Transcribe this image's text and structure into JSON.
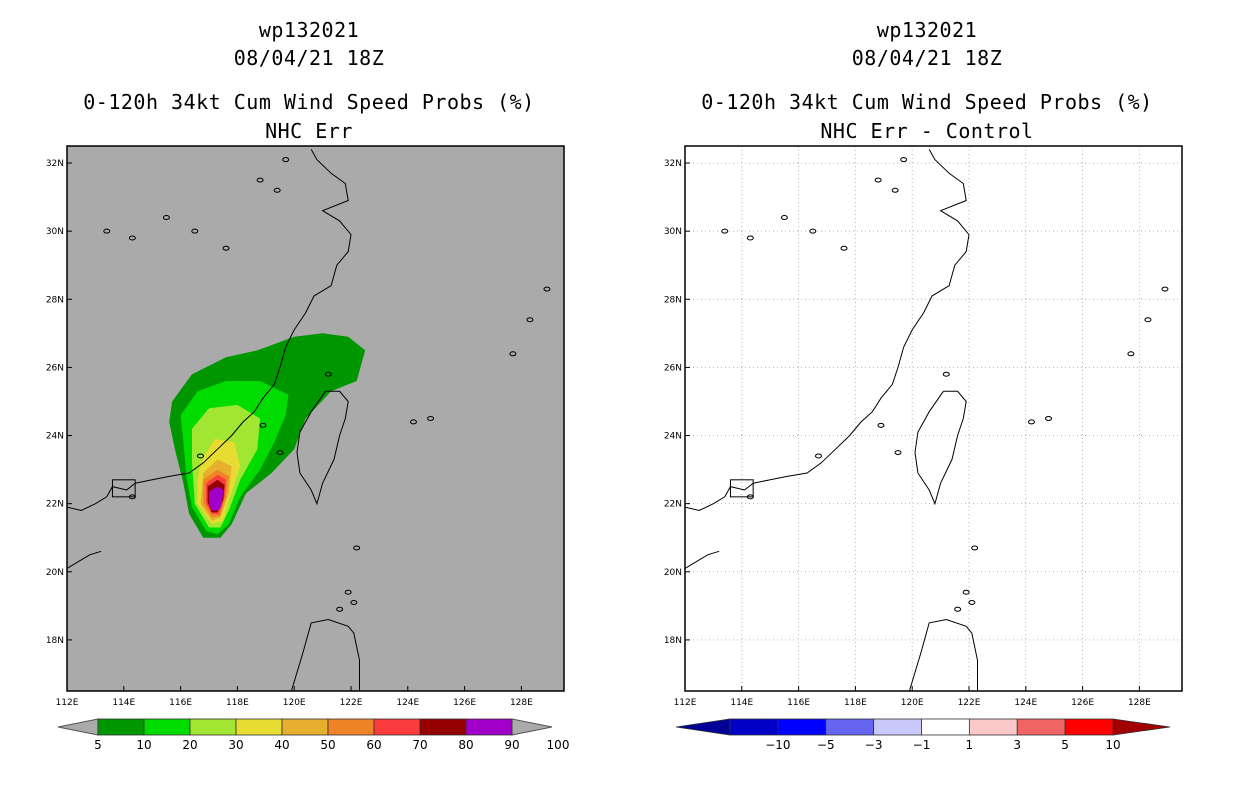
{
  "chart_data": [
    {
      "type": "heatmap",
      "id": "storm",
      "storm_id": "wp132021",
      "date": "08/04/21 18Z",
      "title": "0-120h 34kt Cum Wind Speed Probs (%)",
      "subtitle": "NHC Err",
      "xlim": [
        112,
        129.5
      ],
      "ylim": [
        16.5,
        32.5
      ],
      "x_ticks": [
        "112E",
        "114E",
        "116E",
        "118E",
        "120E",
        "122E",
        "124E",
        "126E",
        "128E"
      ],
      "y_ticks": [
        "18N",
        "20N",
        "22N",
        "24N",
        "26N",
        "28N",
        "30N",
        "32N"
      ],
      "colorbar_labels": [
        "5",
        "10",
        "20",
        "30",
        "40",
        "50",
        "60",
        "70",
        "80",
        "90",
        "100"
      ],
      "colorbar_colors": [
        "#009600",
        "#00dc00",
        "#a0e632",
        "#e6dc32",
        "#e6af2d",
        "#f08228",
        "#fa3c3c",
        "#960000",
        "#a000c8"
      ],
      "background_color": "#aaaaaa",
      "grid": false
    },
    {
      "type": "heatmap",
      "id": "diff",
      "storm_id": "wp132021",
      "date": "08/04/21 18Z",
      "title": "0-120h 34kt Cum Wind Speed Probs (%)",
      "subtitle": "NHC Err - Control",
      "xlim": [
        112,
        129.5
      ],
      "ylim": [
        16.5,
        32.5
      ],
      "x_ticks": [
        "112E",
        "114E",
        "116E",
        "118E",
        "120E",
        "122E",
        "124E",
        "126E",
        "128E"
      ],
      "y_ticks": [
        "18N",
        "20N",
        "22N",
        "24N",
        "26N",
        "28N",
        "30N",
        "32N"
      ],
      "colorbar_labels": [
        "−10",
        "−5",
        "−3",
        "−1",
        "1",
        "3",
        "5",
        "10"
      ],
      "colorbar_colors": [
        "#0000c8",
        "#0000ff",
        "#6464f0",
        "#c8c8fa",
        "#ffffff",
        "#fac8c8",
        "#f06464",
        "#ff0000"
      ],
      "colorbar_ends": [
        "#000096",
        "#a00000"
      ],
      "background_color": "#ffffff",
      "grid": true
    }
  ]
}
